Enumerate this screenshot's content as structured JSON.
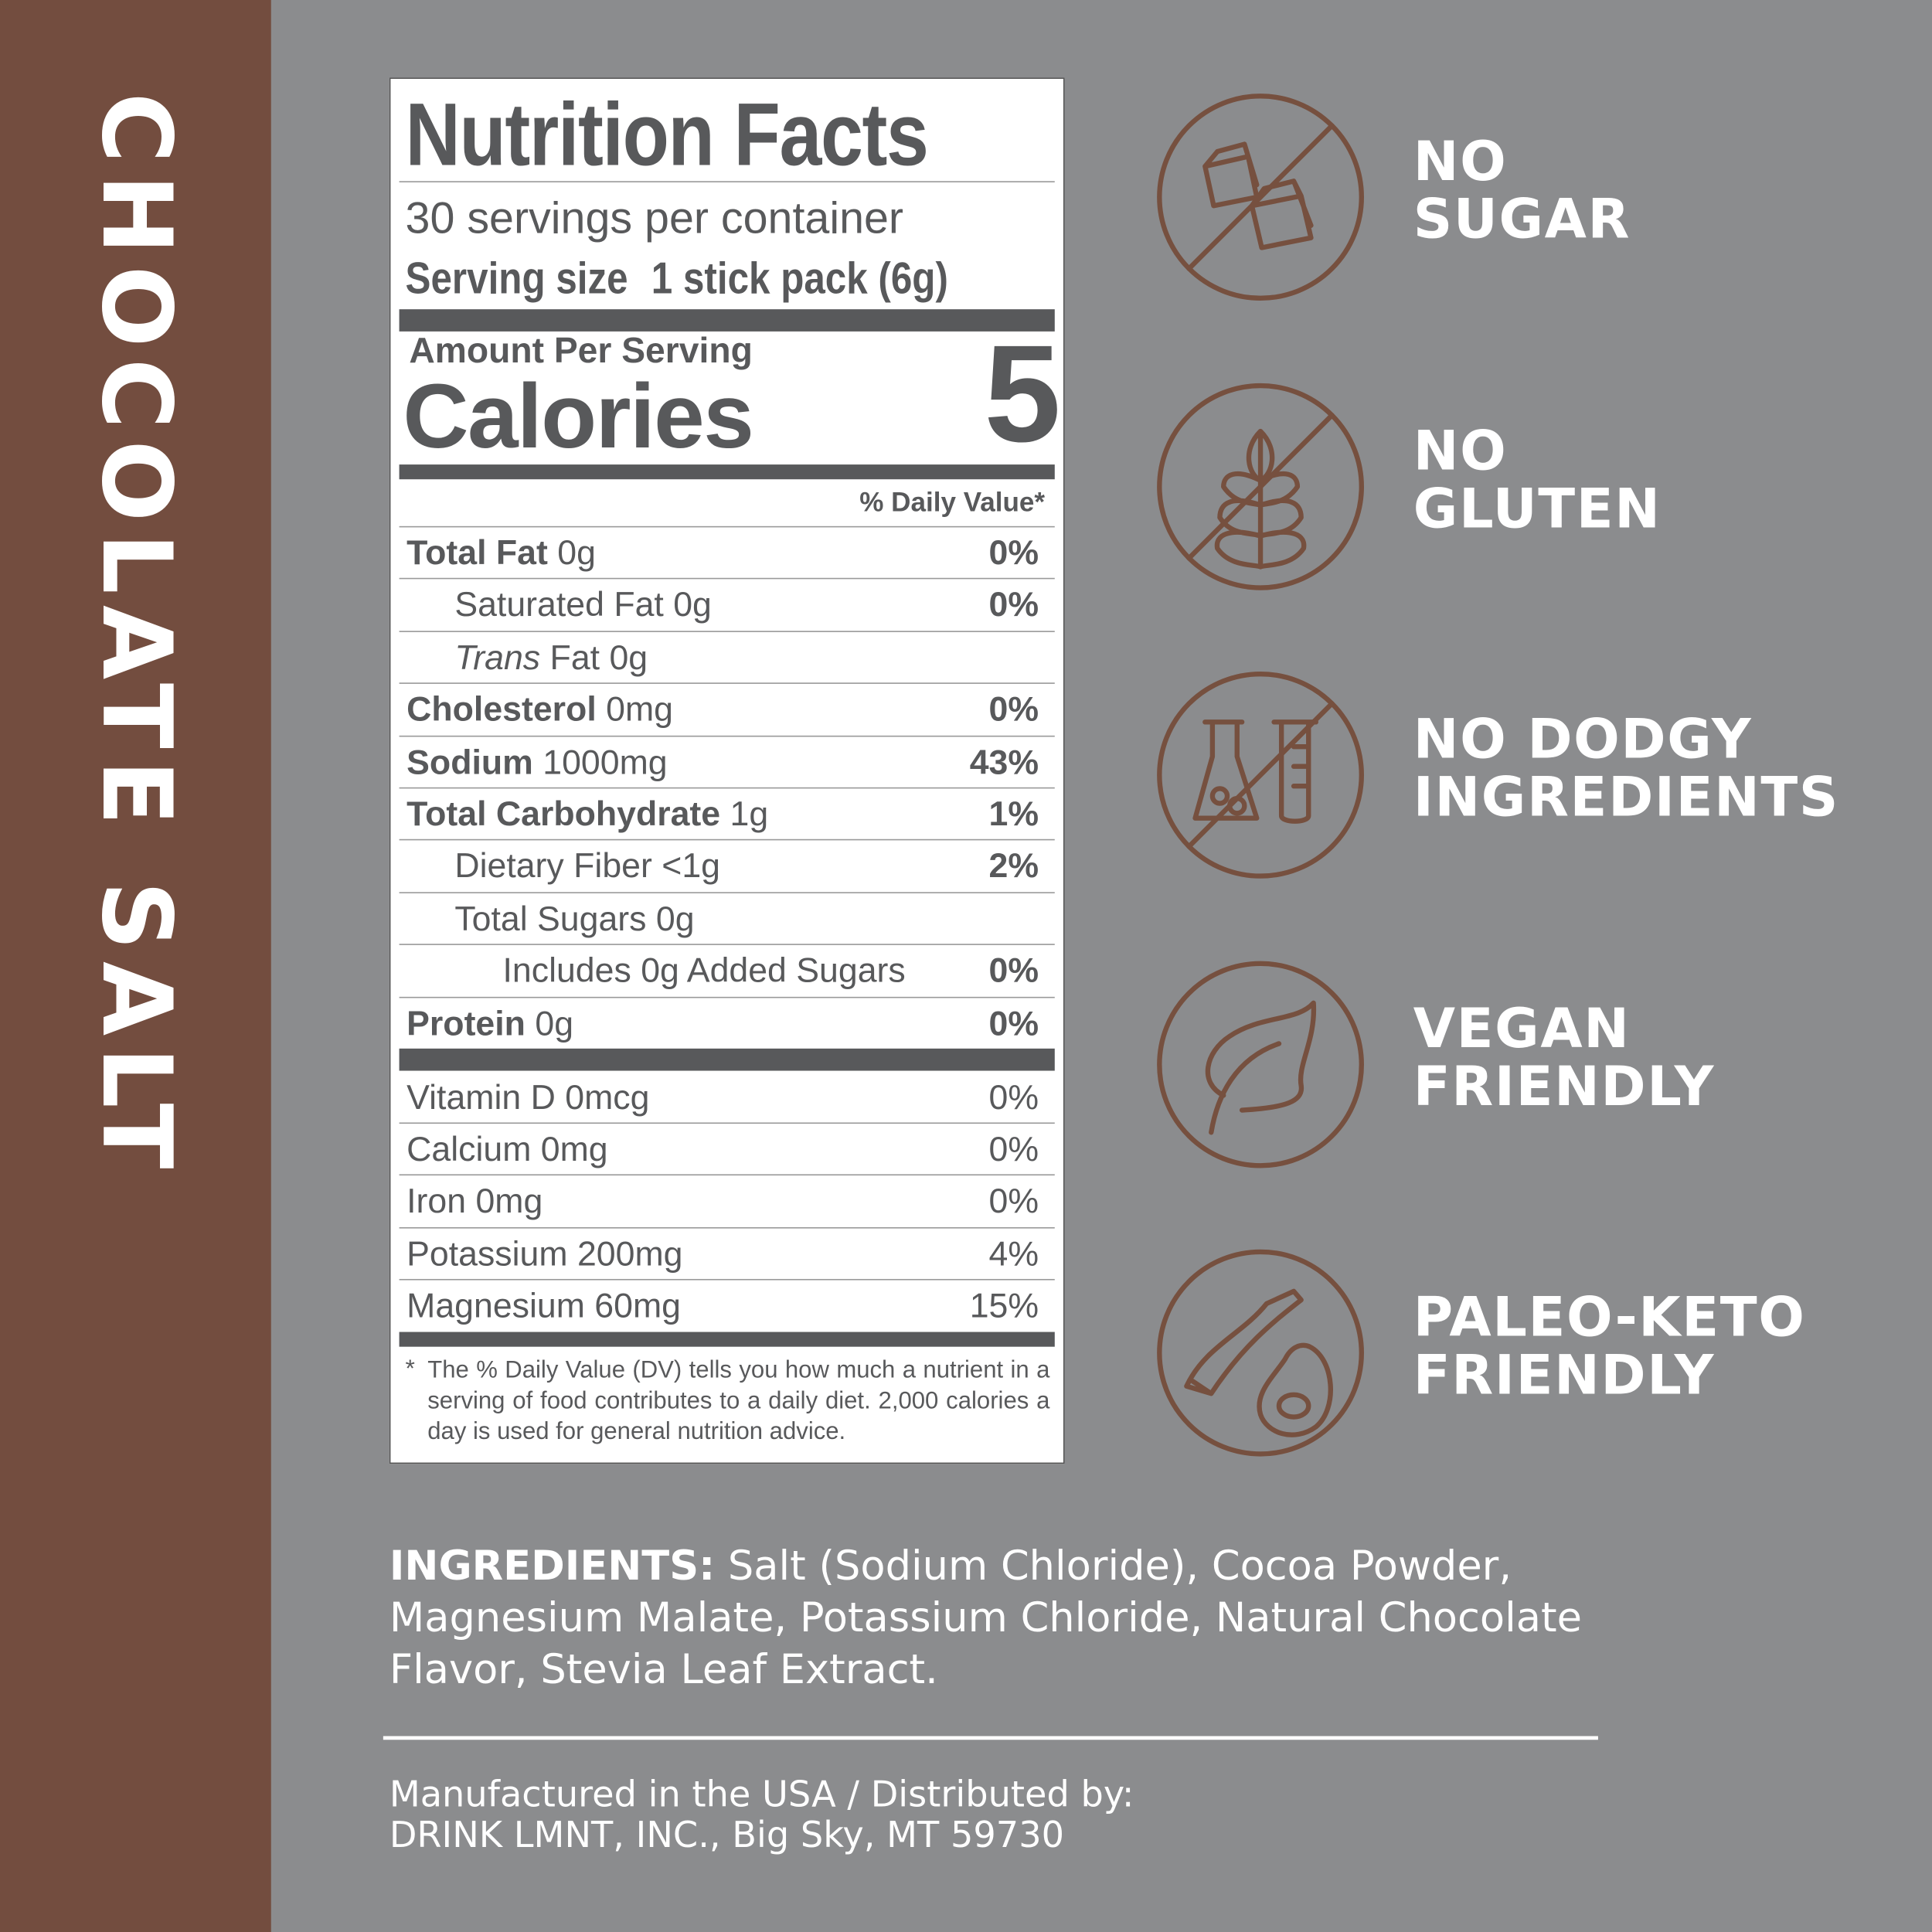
{
  "side_title": "CHOCOLATE SALT",
  "colors": {
    "brand_brown": "#734d3f",
    "background": "#8b8c8e",
    "label_ink": "#58595b",
    "icon_stroke": "#76503f"
  },
  "nutrition": {
    "title": "Nutrition Facts",
    "servings": "30 servings per container",
    "serving_size_label": "Serving size",
    "serving_size_value": "1 stick pack (6g)",
    "amount_per_serving": "Amount Per Serving",
    "calories_label": "Calories",
    "calories_value": "5",
    "dv_header": "% Daily Value*",
    "rows": [
      {
        "bold": "Total Fat",
        "rest": " 0g",
        "dv": "0%"
      },
      {
        "bold": "",
        "rest": "Saturated Fat 0g",
        "dv": "0%"
      },
      {
        "bold": "",
        "italic": "Trans",
        "rest": " Fat 0g",
        "dv": ""
      },
      {
        "bold": "Cholesterol",
        "rest": " 0mg",
        "dv": "0%"
      },
      {
        "bold": "Sodium",
        "rest": " 1000mg",
        "dv": "43%"
      },
      {
        "bold": "Total Carbohydrate",
        "rest": " 1g",
        "dv": "1%"
      },
      {
        "bold": "",
        "rest": "Dietary Fiber <1g",
        "dv": "2%"
      },
      {
        "bold": "",
        "rest": "Total Sugars 0g",
        "dv": ""
      },
      {
        "bold": "",
        "rest": "Includes 0g Added Sugars",
        "dv": "0%"
      },
      {
        "bold": "Protein",
        "rest": " 0g",
        "dv": "0%"
      }
    ],
    "micros": [
      {
        "name": "Vitamin D 0mcg",
        "dv": "0%"
      },
      {
        "name": "Calcium 0mg",
        "dv": "0%"
      },
      {
        "name": "Iron 0mg",
        "dv": "0%"
      },
      {
        "name": "Potassium 200mg",
        "dv": "4%"
      },
      {
        "name": "Magnesium 60mg",
        "dv": "15%"
      }
    ],
    "footnote_star": "*",
    "footnote": "The % Daily Value (DV) tells you how much a nutrient in a serving of food contributes to a daily diet. 2,000 calories a day is used for general nutrition advice."
  },
  "badges": [
    {
      "icon": "no-sugar-cubes-icon",
      "line1": "NO",
      "line2": "SUGAR"
    },
    {
      "icon": "no-gluten-wheat-icon",
      "line1": "NO",
      "line2": "GLUTEN"
    },
    {
      "icon": "no-chemicals-flask-icon",
      "line1": "NO DODGY",
      "line2": "INGREDIENTS"
    },
    {
      "icon": "vegan-leaf-icon",
      "line1": "VEGAN",
      "line2": "FRIENDLY"
    },
    {
      "icon": "paleo-keto-bacon-egg-icon",
      "line1": "PALEO-KETO",
      "line2": "FRIENDLY"
    }
  ],
  "ingredients": {
    "label": "INGREDIENTS:",
    "text": " Salt (Sodium Chloride), Cocoa Powder, Magnesium Malate, Potassium Chloride,  Natural Chocolate Flavor, Stevia Leaf Extract."
  },
  "manufacturer": {
    "line1": "Manufactured in the USA / Distributed by:",
    "line2": "DRINK LMNT, INC., Big Sky, MT 59730"
  }
}
